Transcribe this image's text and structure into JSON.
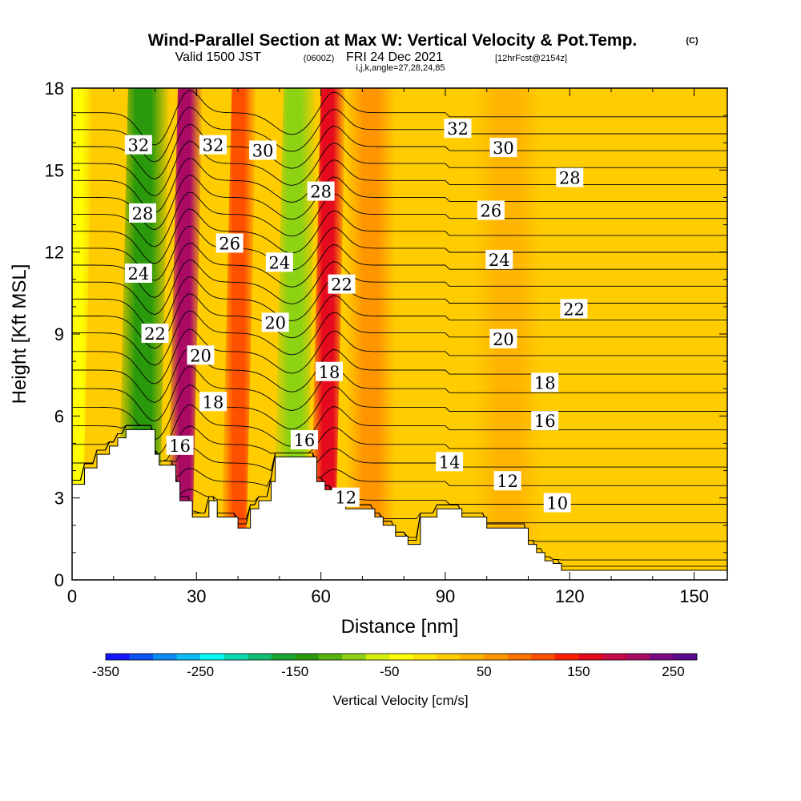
{
  "titles": {
    "main": "Wind-Parallel Section at Max W: Vertical Velocity & Pot.Temp.",
    "copyright": "(C)",
    "valid_prefix": "Valid 1500 JST",
    "valid_utc": "(0600Z)",
    "valid_date": "FRI 24 Dec 2021",
    "forecast": "[12hrFcst@2154z]",
    "indices": "i,j,k,angle=27,28,24,85"
  },
  "chart_data": {
    "type": "heatmap",
    "xlabel": "Distance [nm]",
    "ylabel": "Height [Kft MSL]",
    "xlim": [
      0,
      158
    ],
    "ylim": [
      0,
      18
    ],
    "x_ticks": [
      {
        "value": 0,
        "label": "0"
      },
      {
        "value": 30,
        "label": "30"
      },
      {
        "value": 60,
        "label": "60"
      },
      {
        "value": 90,
        "label": "90"
      },
      {
        "value": 120,
        "label": "120"
      },
      {
        "value": 150,
        "label": "150"
      }
    ],
    "y_ticks": [
      {
        "value": 0,
        "label": "0"
      },
      {
        "value": 3,
        "label": "3"
      },
      {
        "value": 6,
        "label": "6"
      },
      {
        "value": 9,
        "label": "9"
      },
      {
        "value": 12,
        "label": "12"
      },
      {
        "value": 15,
        "label": "15"
      },
      {
        "value": 18,
        "label": "18"
      }
    ],
    "shading_variable": "Vertical Velocity",
    "contour_variable": "Pot.Temp.",
    "velocity_bands": [
      {
        "x": 2.5,
        "w": 2.5,
        "level": -50
      },
      {
        "x": 18.5,
        "w": 5,
        "level": -150
      },
      {
        "x": 28.5,
        "w": 3,
        "level": 200
      },
      {
        "x": 41.5,
        "w": 3,
        "level": 100
      },
      {
        "x": 55,
        "w": 4,
        "level": -100
      },
      {
        "x": 63,
        "w": 3,
        "level": 150
      },
      {
        "x": 72,
        "w": 6,
        "level": 50
      },
      {
        "x": 105,
        "w": 8,
        "level": 30
      },
      {
        "x": 141,
        "w": 8,
        "level": 20
      }
    ],
    "terrain": [
      [
        0,
        3.5
      ],
      [
        3,
        4.1
      ],
      [
        6,
        4.6
      ],
      [
        9,
        4.9
      ],
      [
        11,
        5.2
      ],
      [
        13,
        5.5
      ],
      [
        19,
        5.5
      ],
      [
        20,
        4.6
      ],
      [
        21,
        4.2
      ],
      [
        24,
        4.2
      ],
      [
        25,
        3.6
      ],
      [
        26,
        2.9
      ],
      [
        28,
        2.9
      ],
      [
        29,
        2.3
      ],
      [
        31,
        2.3
      ],
      [
        33,
        2.9
      ],
      [
        35,
        2.3
      ],
      [
        37,
        2.3
      ],
      [
        39,
        2.3
      ],
      [
        40,
        1.9
      ],
      [
        42,
        1.9
      ],
      [
        43,
        2.6
      ],
      [
        44,
        2.6
      ],
      [
        45,
        2.9
      ],
      [
        47,
        2.9
      ],
      [
        48,
        3.6
      ],
      [
        49,
        4.5
      ],
      [
        58,
        4.5
      ],
      [
        59,
        3.6
      ],
      [
        61,
        3.3
      ],
      [
        63,
        2.9
      ],
      [
        66,
        2.6
      ],
      [
        69,
        2.6
      ],
      [
        72,
        2.6
      ],
      [
        73,
        2.3
      ],
      [
        75,
        2.0
      ],
      [
        77,
        2.0
      ],
      [
        78,
        1.6
      ],
      [
        80,
        1.6
      ],
      [
        81,
        1.3
      ],
      [
        83,
        1.3
      ],
      [
        84,
        2.3
      ],
      [
        88,
        2.6
      ],
      [
        92,
        2.6
      ],
      [
        94,
        2.3
      ],
      [
        98,
        2.3
      ],
      [
        100,
        1.9
      ],
      [
        104,
        1.9
      ],
      [
        106,
        1.9
      ],
      [
        108,
        1.9
      ],
      [
        110,
        1.3
      ],
      [
        112,
        1.0
      ],
      [
        114,
        0.7
      ],
      [
        116,
        0.6
      ],
      [
        118,
        0.35
      ],
      [
        126,
        0.35
      ],
      [
        158,
        0.35
      ]
    ],
    "contour_levels": [
      7,
      8,
      9,
      10,
      11,
      12,
      13,
      14,
      15,
      16,
      17,
      18,
      19,
      20,
      21,
      22,
      23,
      24,
      25,
      26,
      27,
      28,
      29,
      30,
      31,
      32,
      33
    ],
    "contour_labels": [
      {
        "text": "32",
        "x": 16,
        "y": 15.9
      },
      {
        "text": "28",
        "x": 17,
        "y": 13.4
      },
      {
        "text": "24",
        "x": 16,
        "y": 11.2
      },
      {
        "text": "22",
        "x": 20,
        "y": 9.0
      },
      {
        "text": "20",
        "x": 31,
        "y": 8.2
      },
      {
        "text": "18",
        "x": 34,
        "y": 6.5
      },
      {
        "text": "16",
        "x": 26,
        "y": 4.9
      },
      {
        "text": "32",
        "x": 34,
        "y": 15.9
      },
      {
        "text": "30",
        "x": 46,
        "y": 15.7
      },
      {
        "text": "28",
        "x": 60,
        "y": 14.2
      },
      {
        "text": "26",
        "x": 38,
        "y": 12.3
      },
      {
        "text": "24",
        "x": 50,
        "y": 11.6
      },
      {
        "text": "22",
        "x": 65,
        "y": 10.8
      },
      {
        "text": "20",
        "x": 49,
        "y": 9.4
      },
      {
        "text": "18",
        "x": 62,
        "y": 7.6
      },
      {
        "text": "16",
        "x": 56,
        "y": 5.1
      },
      {
        "text": "12",
        "x": 66,
        "y": 3.0
      },
      {
        "text": "14",
        "x": 91,
        "y": 4.3
      },
      {
        "text": "12",
        "x": 105,
        "y": 3.6
      },
      {
        "text": "10",
        "x": 117,
        "y": 2.8
      },
      {
        "text": "32",
        "x": 93,
        "y": 16.5
      },
      {
        "text": "30",
        "x": 104,
        "y": 15.8
      },
      {
        "text": "28",
        "x": 120,
        "y": 14.7
      },
      {
        "text": "26",
        "x": 101,
        "y": 13.5
      },
      {
        "text": "24",
        "x": 103,
        "y": 11.7
      },
      {
        "text": "22",
        "x": 121,
        "y": 9.9
      },
      {
        "text": "20",
        "x": 104,
        "y": 8.8
      },
      {
        "text": "18",
        "x": 114,
        "y": 7.2
      },
      {
        "text": "16",
        "x": 114,
        "y": 5.8
      }
    ]
  },
  "colorbar": {
    "title": "Vertical Velocity [cm/s]",
    "colors": [
      "#1414ff",
      "#0c52f5",
      "#0b8df5",
      "#0bbcf5",
      "#00fbf5",
      "#0dd9b0",
      "#12bd73",
      "#1ba533",
      "#2a9a0c",
      "#58b40c",
      "#8ed214",
      "#d4f00a",
      "#ffff00",
      "#ffe600",
      "#ffcc00",
      "#ffb400",
      "#ff9600",
      "#ff7300",
      "#ff5000",
      "#ff1e00",
      "#e60a1e",
      "#c80a46",
      "#aa0a64",
      "#7a0a82",
      "#5a0a8c"
    ],
    "min": -350,
    "step": 25,
    "labels": [
      {
        "value": -350,
        "text": "-350"
      },
      {
        "value": -250,
        "text": "-250"
      },
      {
        "value": -150,
        "text": "-150"
      },
      {
        "value": -50,
        "text": "-50"
      },
      {
        "value": 50,
        "text": "50"
      },
      {
        "value": 150,
        "text": "150"
      },
      {
        "value": 250,
        "text": "250"
      }
    ]
  }
}
